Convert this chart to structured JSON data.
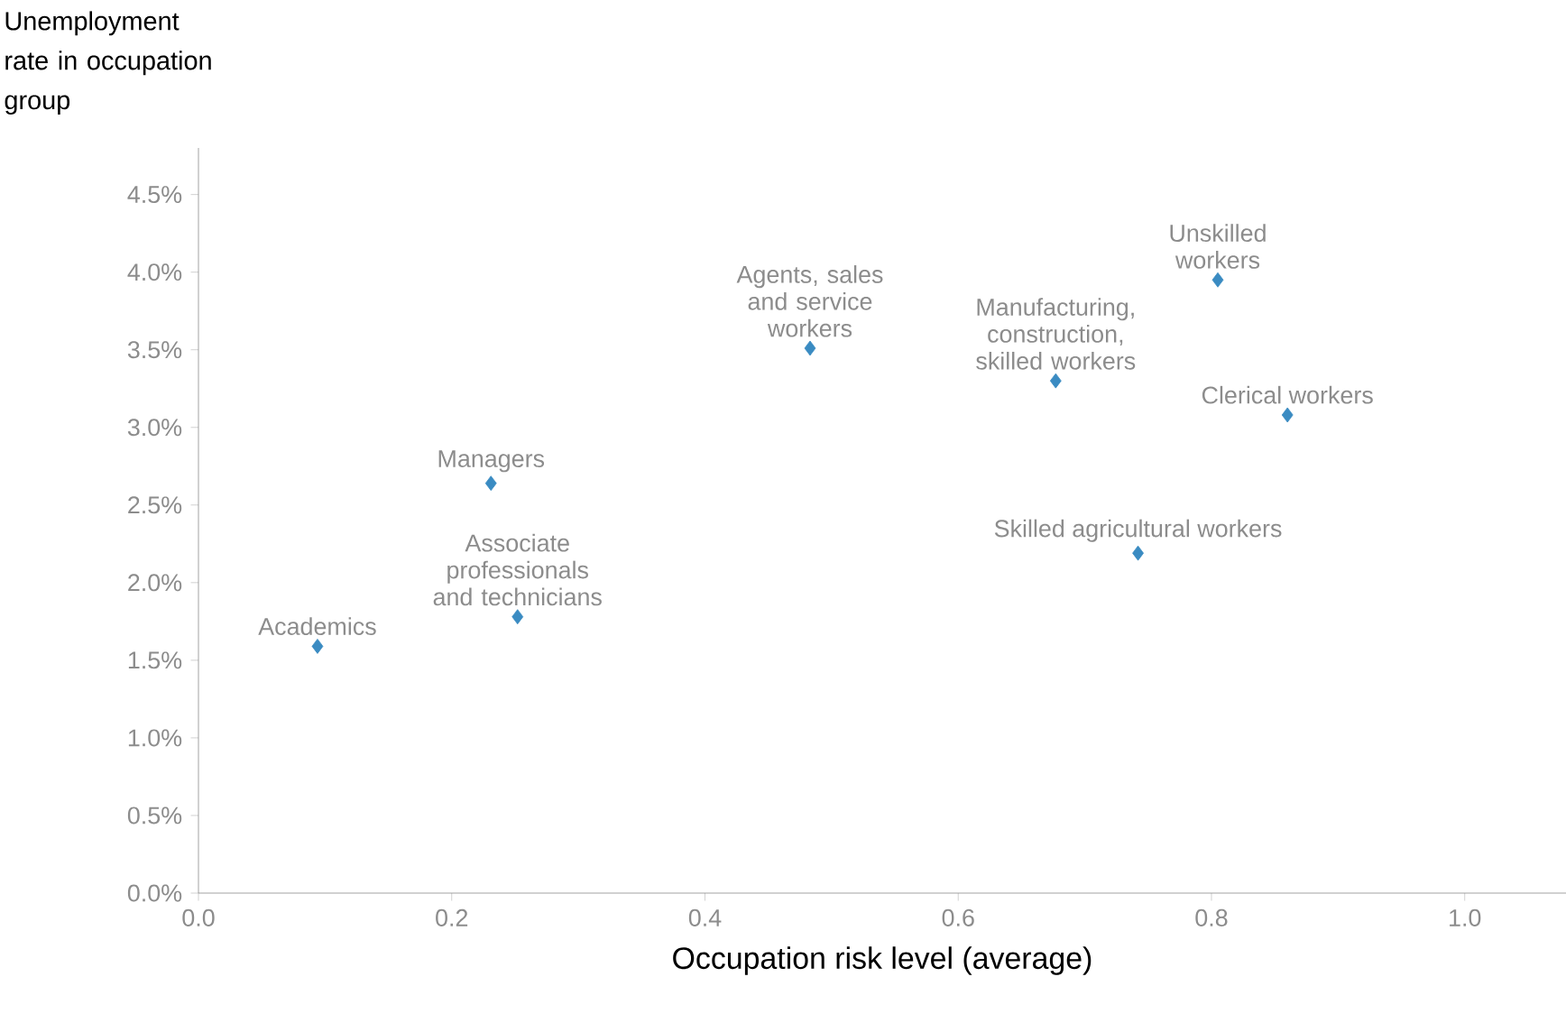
{
  "chart_data": {
    "type": "scatter",
    "xlabel": "Occupation risk level (average)",
    "ylabel": "Unemployment rate in occupation group",
    "x": [
      0.094,
      0.231,
      0.252,
      0.483,
      0.677,
      0.742,
      0.805,
      0.86
    ],
    "values": [
      1.59,
      2.64,
      1.78,
      3.51,
      3.3,
      2.19,
      3.95,
      3.08
    ],
    "color": "#3a8bc2",
    "marker": "diamond",
    "grid": false,
    "xlim": [
      0,
      1.08
    ],
    "ylim": [
      0,
      4.8
    ],
    "xticks": [
      {
        "value": 0,
        "label": "0.0"
      },
      {
        "value": 0.2,
        "label": "0.2"
      },
      {
        "value": 0.4,
        "label": "0.4"
      },
      {
        "value": 0.6,
        "label": "0.6"
      },
      {
        "value": 0.8,
        "label": "0.8"
      },
      {
        "value": 1.0,
        "label": "1.0"
      }
    ],
    "yticks": [
      {
        "value": 0,
        "label": "0.0%"
      },
      {
        "value": 0.5,
        "label": "0.5%"
      },
      {
        "value": 1.0,
        "label": "1.0%"
      },
      {
        "value": 1.5,
        "label": "1.5%"
      },
      {
        "value": 2.0,
        "label": "2.0%"
      },
      {
        "value": 2.5,
        "label": "2.5%"
      },
      {
        "value": 3.0,
        "label": "3.0%"
      },
      {
        "value": 3.5,
        "label": "3.5%"
      },
      {
        "value": 4.0,
        "label": "4.0%"
      },
      {
        "value": 4.5,
        "label": "4.5%"
      }
    ],
    "annotations": [
      {
        "text": "Academics",
        "x": 0.094,
        "y": 1.59
      },
      {
        "text": "Managers",
        "x": 0.231,
        "y": 2.64
      },
      {
        "text": "Associate professionals and technicians",
        "x": 0.252,
        "y": 1.78
      },
      {
        "text": "Agents, sales and service workers",
        "x": 0.483,
        "y": 3.51
      },
      {
        "text": "Manufacturing, construction, skilled workers",
        "x": 0.677,
        "y": 3.3
      },
      {
        "text": "Skilled agricultural workers",
        "x": 0.742,
        "y": 2.19
      },
      {
        "text": "Unskilled workers",
        "x": 0.805,
        "y": 3.95
      },
      {
        "text": "Clerical workers",
        "x": 0.86,
        "y": 3.08
      }
    ]
  }
}
